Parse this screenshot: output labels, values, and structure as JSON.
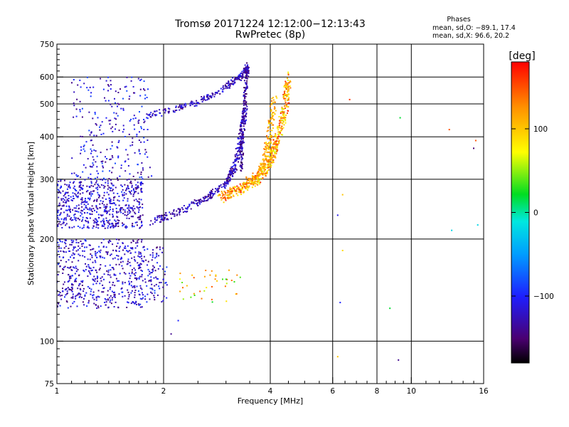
{
  "chart_data": {
    "type": "scatter",
    "title": "Tromsø 20171224 12:12:00−12:13:43",
    "subtitle": "RwPretec (8p)",
    "xlabel": "Frequency [MHz]",
    "ylabel": "Stationary phase Virtual Height [km]",
    "xscale": "log",
    "yscale": "log",
    "xlim": [
      1,
      16
    ],
    "ylim": [
      75,
      750
    ],
    "xticks": [
      1,
      2,
      4,
      6,
      8,
      10,
      16
    ],
    "xtick_labels": [
      "1",
      "2",
      "4",
      "6",
      "8",
      "10",
      "16"
    ],
    "x_gridlines": [
      2,
      4,
      6,
      8,
      10
    ],
    "yticks": [
      75,
      100,
      200,
      300,
      400,
      500,
      600,
      750
    ],
    "ytick_labels": [
      "75",
      "100",
      "200",
      "300",
      "400",
      "500",
      "600",
      "750"
    ],
    "y_gridlines": [
      100,
      200,
      300,
      400,
      500,
      600
    ],
    "grid": true,
    "stats": {
      "heading": "Phases",
      "line_o": "mean, sd,O: −89.1, 17.4",
      "line_x": "mean, sd,X:  96.6, 20.2"
    },
    "colorbar": {
      "label": "[deg]",
      "range": [
        -180,
        180
      ],
      "ticks": [
        100,
        0,
        -100
      ],
      "tick_labels": [
        "100",
        "0",
        "−100"
      ]
    },
    "clusters": [
      {
        "name": "low-layer",
        "n": 520,
        "f": [
          1.0,
          1.75
        ],
        "h": [
          125,
          200
        ],
        "phase": [
          -150,
          -90
        ]
      },
      {
        "name": "low-layer-tail",
        "n": 110,
        "f": [
          1.7,
          2.05
        ],
        "h": [
          130,
          190
        ],
        "phase": [
          -150,
          -80
        ]
      },
      {
        "name": "low-layer-green",
        "n": 40,
        "f": [
          2.2,
          3.3
        ],
        "h": [
          130,
          165
        ],
        "phase": [
          20,
          150
        ]
      },
      {
        "name": "mid-band",
        "n": 580,
        "f": [
          1.0,
          1.75
        ],
        "h": [
          215,
          300
        ],
        "phase": [
          -150,
          -90
        ]
      },
      {
        "name": "upper-scatter",
        "n": 260,
        "f": [
          1.1,
          1.85
        ],
        "h": [
          300,
          600
        ],
        "phase": [
          -150,
          -80
        ]
      }
    ],
    "traces": [
      {
        "name": "trace-o-lower",
        "n": 360,
        "x": [
          1.85,
          2.2,
          2.6,
          3.0,
          3.2,
          3.3,
          3.4
        ],
        "y": [
          225,
          240,
          260,
          290,
          330,
          400,
          480
        ],
        "phase": [
          -150,
          -100
        ],
        "spread_h": 0.025,
        "spread_f": 0.015
      },
      {
        "name": "trace-o-upper",
        "n": 240,
        "x": [
          1.8,
          2.1,
          2.5,
          2.8,
          3.1,
          3.35,
          3.45
        ],
        "y": [
          460,
          480,
          505,
          540,
          575,
          610,
          640
        ],
        "phase": [
          -150,
          -100
        ],
        "spread_h": 0.02,
        "spread_f": 0.015
      },
      {
        "name": "trace-o-steep",
        "n": 180,
        "x": [
          3.3,
          3.35,
          3.4,
          3.45
        ],
        "y": [
          320,
          420,
          540,
          650
        ],
        "phase": [
          -160,
          -110
        ],
        "spread_h": 0.02,
        "spread_f": 0.012
      },
      {
        "name": "trace-x",
        "n": 520,
        "x": [
          2.9,
          3.3,
          3.7,
          4.0,
          4.2,
          4.4,
          4.5
        ],
        "y": [
          265,
          280,
          300,
          340,
          400,
          480,
          600
        ],
        "phase": [
          60,
          170
        ],
        "spread_h": 0.035,
        "spread_f": 0.02
      },
      {
        "name": "trace-x-inner",
        "n": 200,
        "x": [
          3.4,
          3.7,
          3.9,
          4.0,
          4.1
        ],
        "y": [
          290,
          310,
          350,
          420,
          520
        ],
        "phase": [
          80,
          140
        ],
        "spread_h": 0.03,
        "spread_f": 0.02
      }
    ],
    "points": [
      {
        "x": 6.7,
        "y": 515,
        "phase": 160
      },
      {
        "x": 6.4,
        "y": 270,
        "phase": 100
      },
      {
        "x": 6.2,
        "y": 235,
        "phase": -110
      },
      {
        "x": 6.4,
        "y": 185,
        "phase": 90
      },
      {
        "x": 6.3,
        "y": 130,
        "phase": -100
      },
      {
        "x": 6.2,
        "y": 90,
        "phase": 100
      },
      {
        "x": 9.3,
        "y": 455,
        "phase": 20
      },
      {
        "x": 8.7,
        "y": 125,
        "phase": 20
      },
      {
        "x": 9.2,
        "y": 88,
        "phase": -140
      },
      {
        "x": 12.8,
        "y": 420,
        "phase": 150
      },
      {
        "x": 13.0,
        "y": 212,
        "phase": -20
      },
      {
        "x": 15.2,
        "y": 390,
        "phase": 150
      },
      {
        "x": 15.0,
        "y": 370,
        "phase": -150
      },
      {
        "x": 15.4,
        "y": 220,
        "phase": -20
      },
      {
        "x": 2.1,
        "y": 105,
        "phase": -140
      },
      {
        "x": 2.2,
        "y": 115,
        "phase": -100
      }
    ]
  }
}
